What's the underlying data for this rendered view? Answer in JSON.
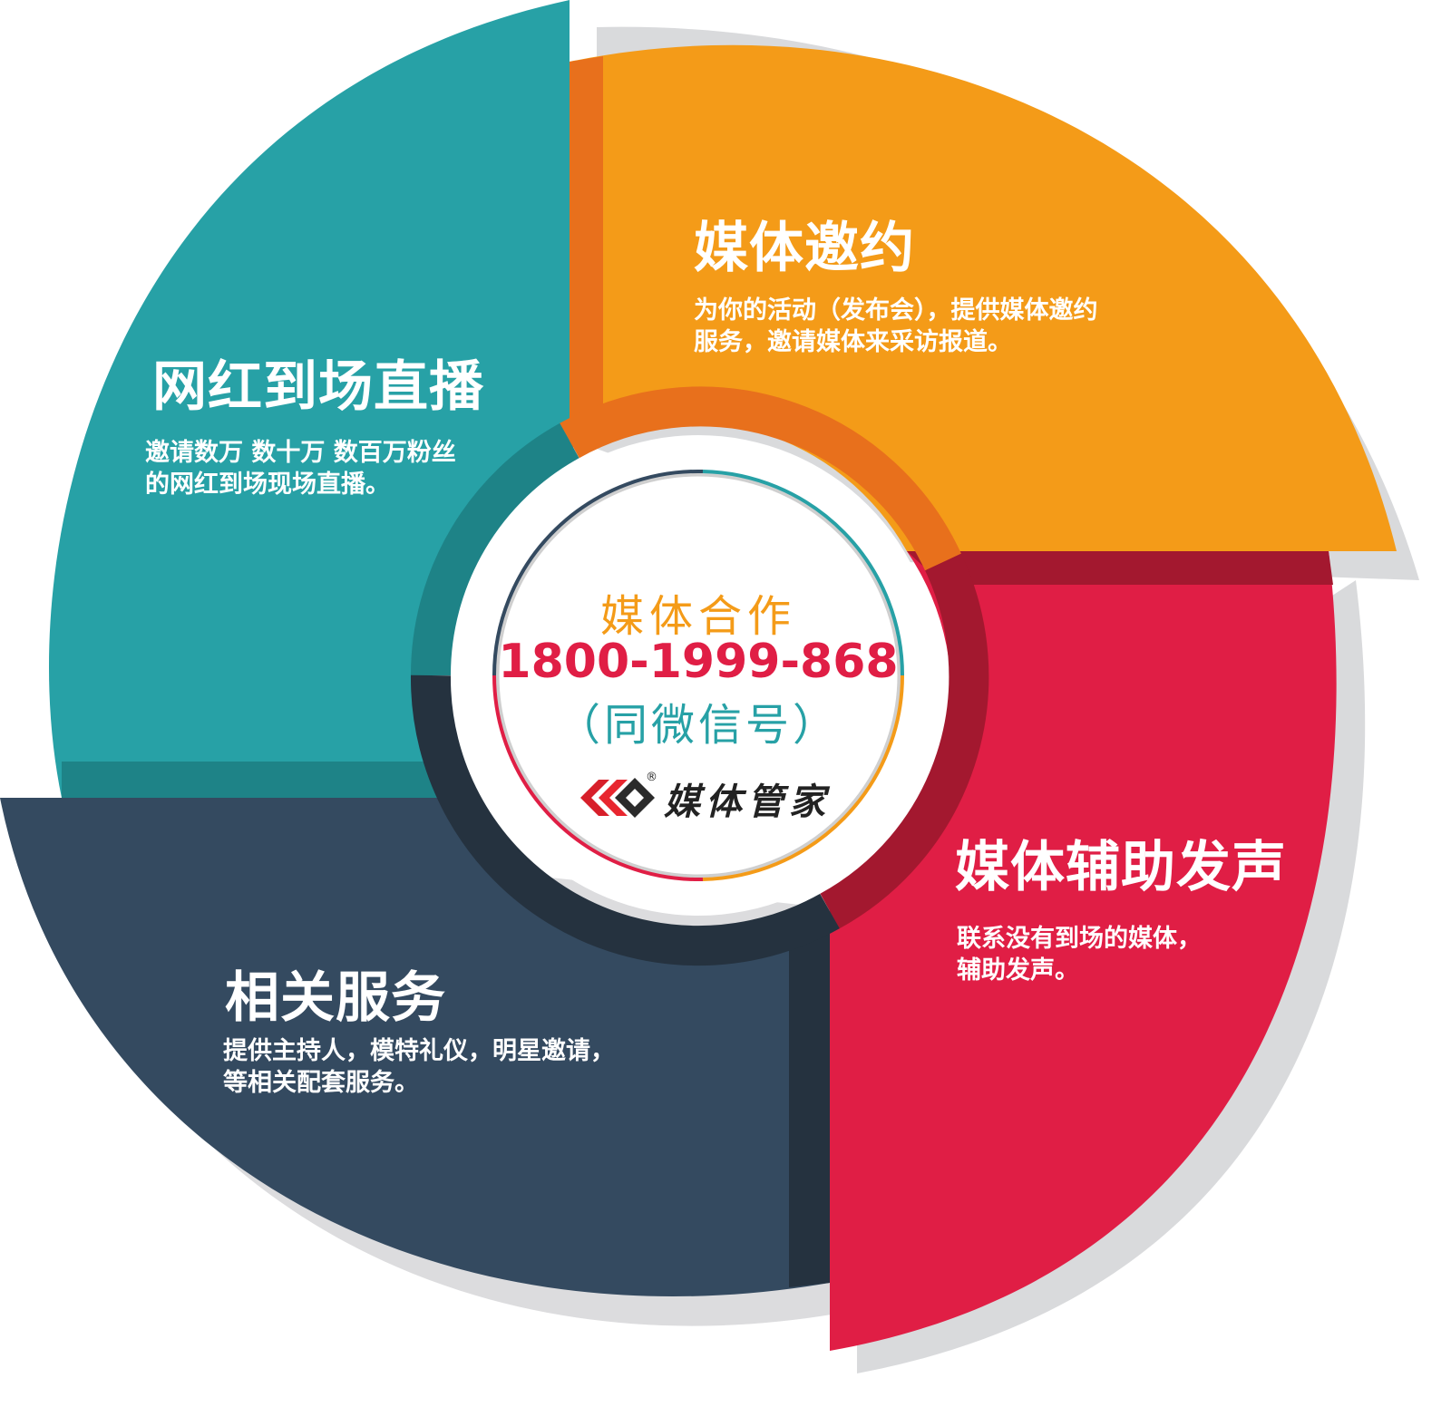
{
  "colors": {
    "teal": "#27a1a6",
    "orange": "#f49b18",
    "red": "#e01e45",
    "navy": "#344a60",
    "phone": "#e01e45",
    "headline": "#f49b18",
    "wechat": "#27a1a6"
  },
  "segments": [
    {
      "title": "网红到场直播",
      "desc": [
        "邀请数万 数十万 数百万粉丝",
        "的网红到场现场直播。"
      ]
    },
    {
      "title": "媒体邀约",
      "desc": [
        "为你的活动（发布会），提供媒体邀约",
        "服务，邀请媒体来采访报道。"
      ]
    },
    {
      "title": "媒体辅助发声",
      "desc": [
        "联系没有到场的媒体，",
        "辅助发声。"
      ]
    },
    {
      "title": "相关服务",
      "desc": [
        "提供主持人，模特礼仪，明星邀请，",
        "等相关配套服务。"
      ]
    }
  ],
  "center": {
    "headline": "媒体合作",
    "phone": "1800-1999-868",
    "note": "（同微信号）",
    "logo": "媒体管家",
    "registered": "®"
  }
}
